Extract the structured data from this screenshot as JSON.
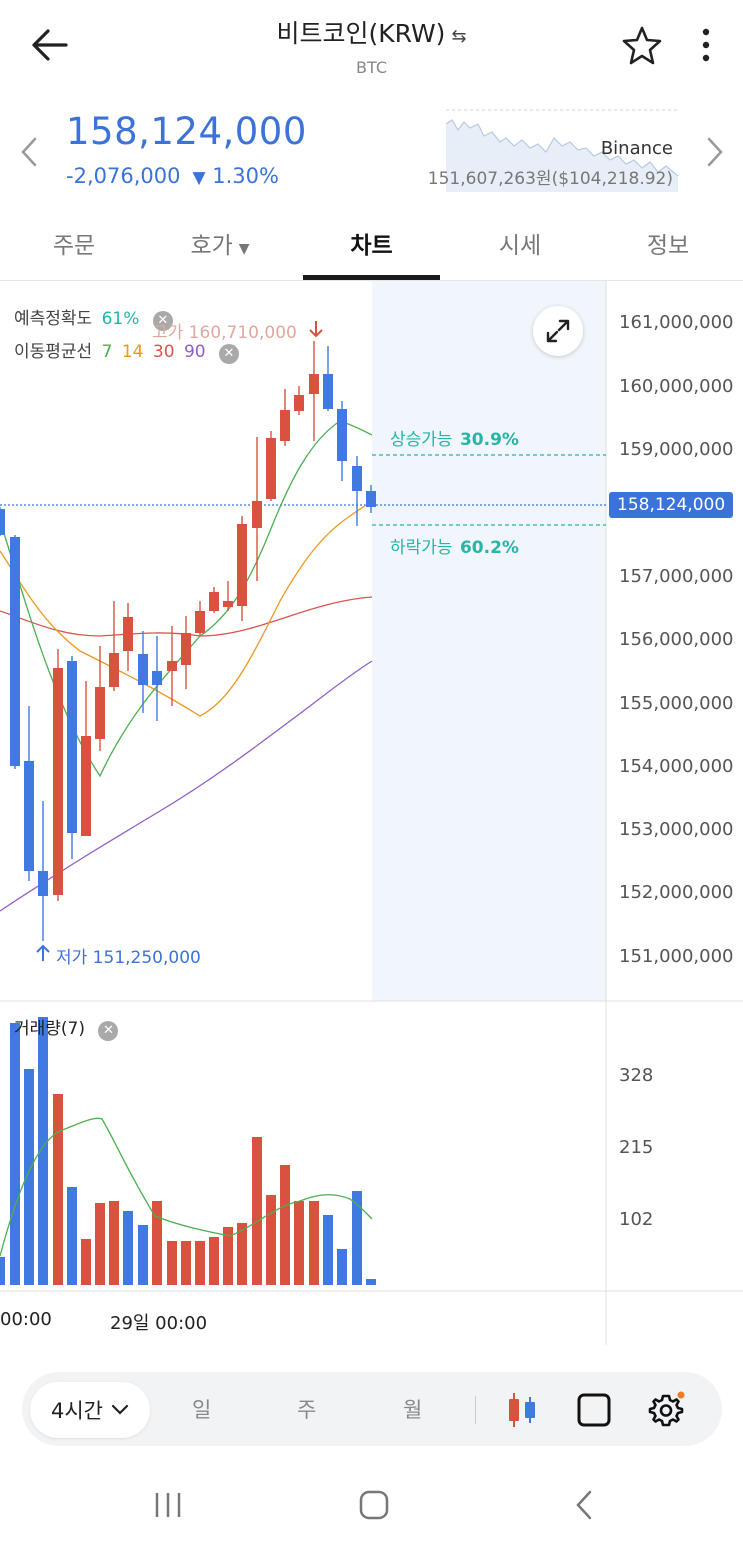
{
  "header": {
    "title": "비트코인(KRW)",
    "swap_icon": "⇆",
    "subtitle": "BTC"
  },
  "price": {
    "current": "158,124,000",
    "change": "-2,076,000",
    "change_pct": "1.30%",
    "direction": "down",
    "color": "#3b73d9"
  },
  "exchange": {
    "name": "Binance",
    "converted": "151,607,263원($104,218.92)"
  },
  "tabs": [
    {
      "label": "주문",
      "active": false
    },
    {
      "label": "호가",
      "active": false,
      "dropdown": true
    },
    {
      "label": "차트",
      "active": true
    },
    {
      "label": "시세",
      "active": false
    },
    {
      "label": "정보",
      "active": false
    }
  ],
  "chart": {
    "prediction_label": "예측정확도",
    "prediction_value": "61%",
    "ma_label": "이동평균선",
    "ma_periods": [
      "7",
      "14",
      "30",
      "90"
    ],
    "ma_colors": [
      "#4caf50",
      "#f0961e",
      "#d9534f",
      "#8e5ec8"
    ],
    "high_label": "고가 160,710,000",
    "low_label": "저가 151,250,000",
    "up_label": "상승가능",
    "up_value": "30.9%",
    "down_label": "하락가능",
    "down_value": "60.2%",
    "current_price_tag": "158,124,000",
    "y_labels": [
      "161,000,000",
      "160,000,000",
      "159,000,000",
      "158,124,000",
      "157,000,000",
      "156,000,000",
      "155,000,000",
      "154,000,000",
      "153,000,000",
      "152,000,000",
      "151,000,000"
    ],
    "volume_label": "거래량(7)",
    "volume_ticks": [
      "328",
      "215",
      "102"
    ],
    "x_labels": [
      "00:00",
      "29일 00:00"
    ],
    "up_color": "#d9523f",
    "down_color": "#4079e0"
  },
  "toolbar": {
    "timeframe": "4시간",
    "options": [
      "일",
      "주",
      "월"
    ]
  }
}
